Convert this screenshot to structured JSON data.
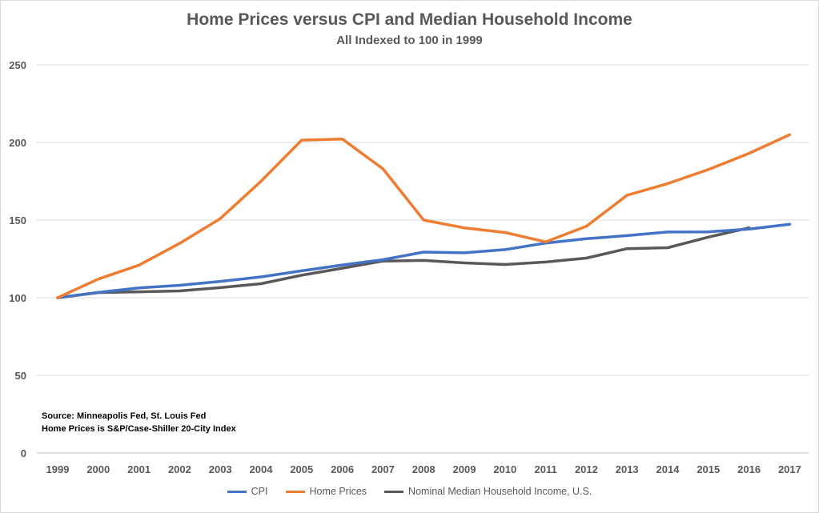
{
  "chart_data": {
    "type": "line",
    "title": "Home Prices versus CPI and Median Household Income",
    "subtitle": "All Indexed to 100 in 1999",
    "x": [
      "1999",
      "2000",
      "2001",
      "2002",
      "2003",
      "2004",
      "2005",
      "2006",
      "2007",
      "2008",
      "2009",
      "2010",
      "2011",
      "2012",
      "2013",
      "2014",
      "2015",
      "2016",
      "2017"
    ],
    "ylim": [
      0,
      250
    ],
    "yticks": [
      0,
      50,
      100,
      150,
      200,
      250
    ],
    "grid": true,
    "legend_position": "bottom",
    "series": [
      {
        "name": "CPI",
        "color": "#4472C4",
        "values": [
          100,
          103.4,
          106.3,
          108.0,
          110.5,
          113.4,
          117.3,
          121.1,
          124.5,
          129.4,
          128.9,
          131.0,
          135.2,
          138.0,
          140.0,
          142.3,
          142.4,
          144.2,
          147.3
        ]
      },
      {
        "name": "Home Prices",
        "color": "#ED7D31",
        "values": [
          100,
          112,
          121,
          135,
          151,
          175,
          201.5,
          202.2,
          183,
          150,
          145,
          142,
          136,
          146,
          166,
          173.5,
          182.5,
          193,
          205
        ]
      },
      {
        "name": "Nominal Median Household Income, U.S.",
        "color": "#595959",
        "values": [
          100,
          103.3,
          103.8,
          104.4,
          106.5,
          109.0,
          114.5,
          119.0,
          123.6,
          124.0,
          122.4,
          121.4,
          123.0,
          125.5,
          131.6,
          132.2,
          139.0,
          145.0,
          null
        ]
      }
    ],
    "annotation": [
      "Source: Minneapolis Fed, St. Louis Fed",
      "Home Prices is S&P/Case-Shiller 20-City Index"
    ]
  }
}
